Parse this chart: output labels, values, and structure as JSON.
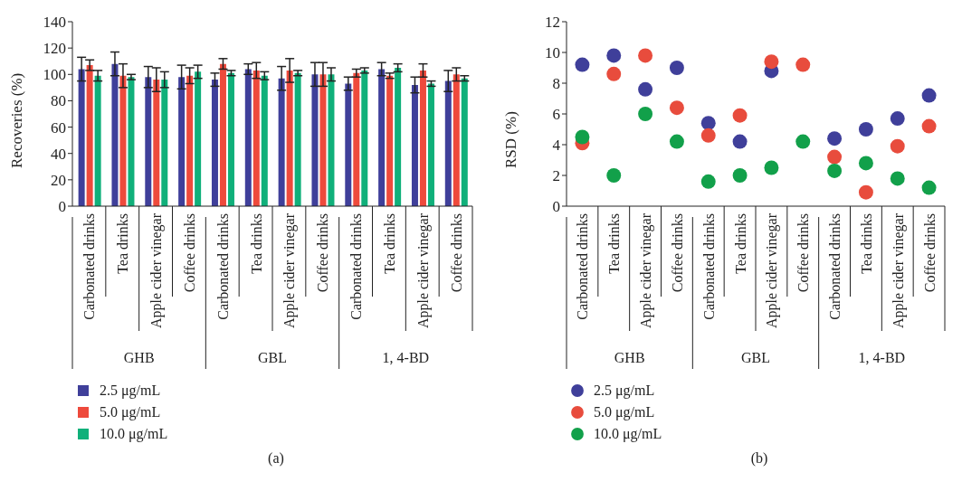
{
  "chart_data": [
    {
      "type": "bar",
      "title": "(a)",
      "ylabel": "Recoveries (%)",
      "categories": [
        "Carbonated drinks",
        "Tea drinks",
        "Apple cider vinegar",
        "Coffee drinks",
        "Carbonated drinks",
        "Tea drinks",
        "Apple cider vinegar",
        "Coffee drinks",
        "Carbonated drinks",
        "Tea drinks",
        "Apple cider vinegar",
        "Coffee drinks"
      ],
      "series": [
        {
          "name": "2.5 μg/mL",
          "color": "#3f3f9a",
          "values": [
            104,
            108,
            98,
            98,
            96,
            104,
            97,
            100,
            93,
            104,
            92,
            95
          ],
          "errors": [
            9,
            9,
            8,
            9,
            5,
            4,
            9,
            9,
            5,
            5,
            6,
            8
          ]
        },
        {
          "name": "5.0 μg/mL",
          "color": "#ee4a3c",
          "values": [
            107,
            99,
            96,
            99,
            108,
            103,
            103,
            100,
            101,
            99,
            103,
            100
          ],
          "errors": [
            4,
            9,
            9,
            6,
            4,
            6,
            9,
            9,
            3,
            2,
            5,
            5
          ]
        },
        {
          "name": "10.0 μg/mL",
          "color": "#10b07a",
          "values": [
            99,
            98,
            96,
            102,
            101,
            99,
            101,
            100,
            103,
            105,
            93,
            97
          ],
          "errors": [
            4,
            2,
            6,
            5,
            2,
            3,
            2,
            5,
            2,
            3,
            2,
            2
          ]
        }
      ],
      "ylim": [
        0,
        140
      ],
      "yticks": [
        0,
        20,
        40,
        60,
        80,
        100,
        120,
        140
      ],
      "legend": "bottom left",
      "annotations": [
        "GHB",
        "GBL",
        "1, 4-BD"
      ]
    },
    {
      "type": "scatter",
      "title": "(b)",
      "ylabel": "RSD (%)",
      "marker": "circle",
      "categories": [
        "Carbonated drinks",
        "Tea drinks",
        "Apple cider vinegar",
        "Coffee drinks",
        "Carbonated drinks",
        "Tea drinks",
        "Apple cider vinegar",
        "Coffee drinks",
        "Carbonated drinks",
        "Tea drinks",
        "Apple cider vinegar",
        "Coffee drinks"
      ],
      "series": [
        {
          "name": "2.5 μg/mL",
          "color": "#3f3f9a",
          "values": [
            9.2,
            9.8,
            7.6,
            9.0,
            5.4,
            4.2,
            8.8,
            null,
            4.4,
            5.0,
            5.7,
            7.2
          ]
        },
        {
          "name": "5.0 μg/mL",
          "color": "#e84c3d",
          "values": [
            4.1,
            8.6,
            9.8,
            6.4,
            4.6,
            5.9,
            9.4,
            9.2,
            3.2,
            0.9,
            3.9,
            5.2
          ]
        },
        {
          "name": "10.0 μg/mL",
          "color": "#12a04a",
          "values": [
            4.5,
            2.0,
            6.0,
            4.2,
            1.6,
            2.0,
            2.5,
            4.2,
            2.3,
            2.8,
            1.8,
            1.2
          ]
        }
      ],
      "ylim": [
        0,
        12
      ],
      "yticks": [
        0,
        2,
        4,
        6,
        8,
        10,
        12
      ],
      "legend": "bottom left",
      "annotations": [
        "GHB",
        "GBL",
        "1, 4-BD"
      ]
    }
  ]
}
